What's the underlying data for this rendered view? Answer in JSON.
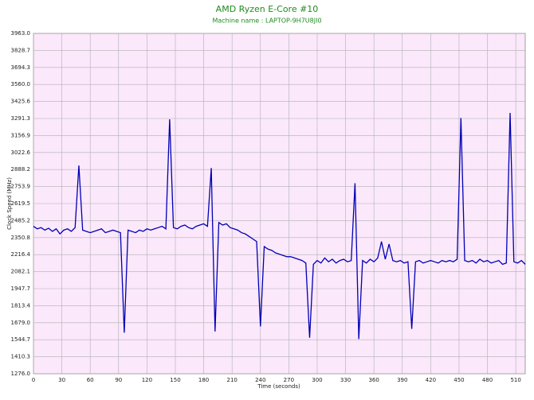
{
  "chart_data": {
    "type": "line",
    "title": "AMD Ryzen E-Core #10",
    "subtitle": "Machine name : LAPTOP-9H7U8JI0",
    "x_label": "Time (seconds)",
    "y_label": "Clock Speed (MHz)",
    "xlim": [
      0,
      520
    ],
    "ylim": [
      1276,
      3963
    ],
    "xticks": [
      0,
      30,
      60,
      90,
      120,
      150,
      180,
      210,
      240,
      270,
      300,
      330,
      360,
      390,
      420,
      450,
      480,
      510
    ],
    "yticks": [
      {
        "value": 1276,
        "label": "1276.0"
      },
      1410.3,
      1544.7,
      {
        "value": 1679,
        "label": "1679.0"
      },
      1813.4,
      1947.7,
      2082.1,
      2216.4,
      2350.8,
      2485.2,
      2619.5,
      2753.9,
      2888.2,
      3022.6,
      3156.9,
      3291.3,
      3425.6,
      {
        "value": 3560,
        "label": "3560.0"
      },
      3694.3,
      3828.7,
      {
        "value": 3963,
        "label": "3963.0"
      }
    ],
    "grid": true,
    "background": "#fbe8fb",
    "x": [
      0,
      4,
      8,
      12,
      16,
      20,
      24,
      28,
      32,
      36,
      40,
      44,
      48,
      52,
      56,
      60,
      64,
      68,
      72,
      76,
      80,
      84,
      88,
      92,
      96,
      100,
      104,
      108,
      112,
      116,
      120,
      124,
      128,
      132,
      136,
      140,
      144,
      148,
      152,
      156,
      160,
      164,
      168,
      172,
      176,
      180,
      184,
      188,
      192,
      196,
      200,
      204,
      208,
      212,
      216,
      220,
      224,
      228,
      232,
      236,
      240,
      244,
      248,
      252,
      256,
      260,
      264,
      268,
      272,
      276,
      280,
      284,
      288,
      292,
      296,
      300,
      304,
      308,
      312,
      316,
      320,
      324,
      328,
      332,
      336,
      340,
      344,
      348,
      352,
      356,
      360,
      364,
      368,
      372,
      376,
      380,
      384,
      388,
      392,
      396,
      400,
      404,
      408,
      412,
      416,
      420,
      424,
      428,
      432,
      436,
      440,
      444,
      448,
      452,
      456,
      460,
      464,
      468,
      472,
      476,
      480,
      484,
      488,
      492,
      496,
      500,
      504,
      508,
      512,
      516,
      520
    ],
    "series": [
      {
        "name": "AMD Ryzen E-Core #10",
        "color": "#0000b4",
        "values": [
          2440,
          2420,
          2430,
          2410,
          2425,
          2400,
          2420,
          2380,
          2410,
          2420,
          2400,
          2430,
          2920,
          2410,
          2400,
          2390,
          2400,
          2410,
          2420,
          2390,
          2400,
          2410,
          2400,
          2390,
          1600,
          2410,
          2400,
          2390,
          2410,
          2400,
          2420,
          2410,
          2420,
          2430,
          2440,
          2420,
          3285,
          2430,
          2420,
          2440,
          2450,
          2430,
          2420,
          2440,
          2450,
          2460,
          2440,
          2900,
          1610,
          2470,
          2450,
          2460,
          2430,
          2420,
          2410,
          2390,
          2380,
          2360,
          2340,
          2320,
          1650,
          2280,
          2260,
          2250,
          2230,
          2220,
          2210,
          2200,
          2200,
          2190,
          2180,
          2170,
          2150,
          1560,
          2140,
          2170,
          2150,
          2190,
          2160,
          2180,
          2150,
          2170,
          2180,
          2160,
          2170,
          2780,
          1550,
          2170,
          2150,
          2180,
          2160,
          2190,
          2320,
          2180,
          2300,
          2170,
          2160,
          2170,
          2150,
          2160,
          1630,
          2160,
          2170,
          2150,
          2160,
          2170,
          2160,
          2150,
          2170,
          2160,
          2170,
          2160,
          2180,
          3295,
          2170,
          2160,
          2170,
          2150,
          2180,
          2160,
          2170,
          2150,
          2160,
          2170,
          2140,
          2150,
          3335,
          2160,
          2150,
          2170,
          2140
        ]
      }
    ]
  }
}
